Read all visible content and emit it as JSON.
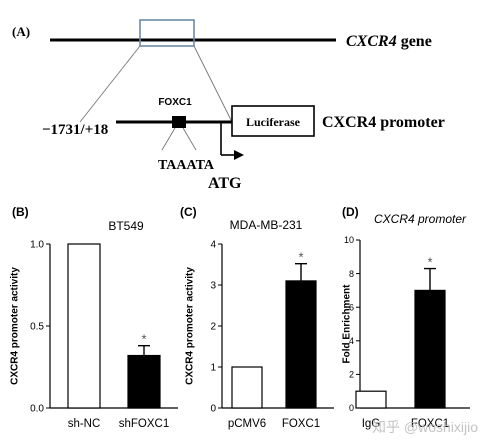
{
  "panel_a": {
    "panel_label": "(A)",
    "gene_label_italic": "CXCR4",
    "gene_label_suffix": " gene",
    "tf_label": "FOXC1",
    "position_label": "−1731/+18",
    "reporter_box": "Luciferase",
    "promoter_label": "CXCR4 promoter",
    "motif": "TAAATA",
    "start_codon": "ATG"
  },
  "watermark": "知乎 @woshixijio",
  "chart_data": [
    {
      "type": "bar",
      "panel_label": "(B)",
      "title": "BT549",
      "title_italic": false,
      "ylabel": "CXCR4 promoter activity",
      "ylim": [
        0,
        1.0
      ],
      "yticks": [
        "0.0",
        "0.5",
        "1.0"
      ],
      "tick_values": [
        0,
        0.5,
        1.0
      ],
      "categories": [
        "sh-NC",
        "shFOXC1"
      ],
      "values": [
        1.0,
        0.32
      ],
      "errors": [
        0,
        0.06
      ],
      "fills": [
        "#ffffff",
        "#000000"
      ],
      "significance": [
        "",
        "*"
      ]
    },
    {
      "type": "bar",
      "panel_label": "(C)",
      "title": "MDA-MB-231",
      "title_italic": false,
      "ylabel": "CXCR4 promoter activity",
      "ylim": [
        0,
        4
      ],
      "yticks": [
        "0",
        "1",
        "2",
        "3",
        "4"
      ],
      "tick_values": [
        0,
        1,
        2,
        3,
        4
      ],
      "categories": [
        "pCMV6",
        "FOXC1"
      ],
      "values": [
        1.0,
        3.1
      ],
      "errors": [
        0,
        0.42
      ],
      "fills": [
        "#ffffff",
        "#000000"
      ],
      "significance": [
        "",
        "*"
      ]
    },
    {
      "type": "bar",
      "panel_label": "(D)",
      "title": "CXCR4 promoter",
      "title_italic": true,
      "ylabel": "Fold Enrichment",
      "ylim": [
        0,
        10
      ],
      "yticks": [
        "0",
        "2",
        "4",
        "6",
        "8",
        "10"
      ],
      "tick_values": [
        0,
        2,
        4,
        6,
        8,
        10
      ],
      "categories": [
        "IgG",
        "FOXC1"
      ],
      "values": [
        1.0,
        7.0
      ],
      "errors": [
        0,
        1.3
      ],
      "fills": [
        "#ffffff",
        "#000000"
      ],
      "significance": [
        "",
        "*"
      ]
    }
  ]
}
